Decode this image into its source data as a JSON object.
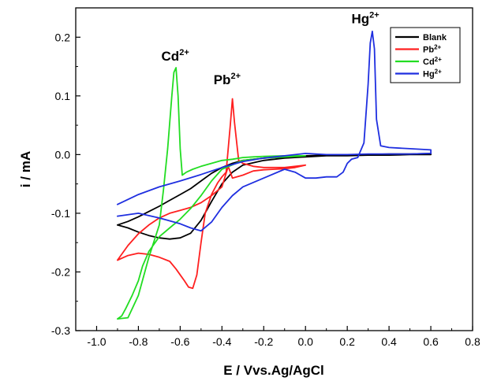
{
  "chart_data": {
    "type": "line",
    "xlabel": "E / Vvs.Ag/AgCl",
    "ylabel": "i / mA",
    "xlim": [
      -1.1,
      0.8
    ],
    "ylim": [
      -0.3,
      0.25
    ],
    "x_ticks": [
      "-1.0",
      "-0.8",
      "-0.6",
      "-0.4",
      "-0.2",
      "0.0",
      "0.2",
      "0.4",
      "0.6",
      "0.8"
    ],
    "x_tick_values": [
      -1.0,
      -0.8,
      -0.6,
      -0.4,
      -0.2,
      0.0,
      0.2,
      0.4,
      0.6,
      0.8
    ],
    "y_ticks": [
      "-0.3",
      "-0.2",
      "-0.1",
      "0.0",
      "0.1",
      "0.2"
    ],
    "y_tick_values": [
      -0.3,
      -0.2,
      -0.1,
      0.0,
      0.1,
      0.2
    ],
    "legend_position": "top-right",
    "grid": false,
    "annotations": [
      {
        "base": "Cd",
        "sup": "2+",
        "x": -0.69,
        "y": 0.16
      },
      {
        "base": "Pb",
        "sup": "2+",
        "x": -0.44,
        "y": 0.12
      },
      {
        "base": "Hg",
        "sup": "2+",
        "x": 0.22,
        "y": 0.224
      }
    ],
    "series": [
      {
        "name": "Blank",
        "label_base": "Blank",
        "label_sup": "",
        "color": "#000000",
        "x": [
          -0.9,
          -0.85,
          -0.8,
          -0.75,
          -0.7,
          -0.65,
          -0.6,
          -0.55,
          -0.5,
          -0.45,
          -0.4,
          -0.35,
          -0.3,
          -0.2,
          -0.1,
          0.0,
          0.1,
          0.2,
          0.3,
          0.4,
          0.5,
          0.6,
          0.6,
          0.5,
          0.4,
          0.3,
          0.2,
          0.1,
          0.0,
          -0.1,
          -0.2,
          -0.3,
          -0.35,
          -0.4,
          -0.45,
          -0.5,
          -0.55,
          -0.6,
          -0.65,
          -0.7,
          -0.75,
          -0.8,
          -0.85,
          -0.9
        ],
        "y": [
          -0.12,
          -0.125,
          -0.132,
          -0.138,
          -0.142,
          -0.144,
          -0.142,
          -0.134,
          -0.112,
          -0.08,
          -0.05,
          -0.03,
          -0.018,
          -0.01,
          -0.006,
          -0.004,
          -0.002,
          -0.002,
          -0.001,
          -0.001,
          0.0,
          0.0,
          0.002,
          0.001,
          0.001,
          0.0,
          0.0,
          -0.001,
          -0.002,
          -0.004,
          -0.006,
          -0.01,
          -0.015,
          -0.022,
          -0.032,
          -0.045,
          -0.058,
          -0.068,
          -0.078,
          -0.088,
          -0.097,
          -0.106,
          -0.114,
          -0.12
        ]
      },
      {
        "name": "Pb2+",
        "label_base": "Pb",
        "label_sup": "2+",
        "color": "#ff2020",
        "x": [
          -0.9,
          -0.85,
          -0.8,
          -0.75,
          -0.7,
          -0.65,
          -0.62,
          -0.6,
          -0.58,
          -0.56,
          -0.54,
          -0.52,
          -0.5,
          -0.48,
          -0.45,
          -0.42,
          -0.4,
          -0.38,
          -0.36,
          -0.35,
          -0.34,
          -0.32,
          -0.3,
          -0.25,
          -0.2,
          -0.1,
          0.0,
          -0.05,
          -0.1,
          -0.15,
          -0.2,
          -0.25,
          -0.3,
          -0.35,
          -0.37,
          -0.4,
          -0.45,
          -0.5,
          -0.55,
          -0.6,
          -0.65,
          -0.7,
          -0.75,
          -0.8,
          -0.85,
          -0.9
        ],
        "y": [
          -0.18,
          -0.172,
          -0.168,
          -0.17,
          -0.175,
          -0.182,
          -0.195,
          -0.205,
          -0.215,
          -0.226,
          -0.228,
          -0.205,
          -0.15,
          -0.1,
          -0.068,
          -0.048,
          -0.038,
          -0.03,
          0.05,
          0.095,
          0.055,
          -0.01,
          -0.015,
          -0.02,
          -0.022,
          -0.022,
          -0.018,
          -0.022,
          -0.024,
          -0.025,
          -0.026,
          -0.028,
          -0.035,
          -0.04,
          -0.02,
          -0.055,
          -0.07,
          -0.082,
          -0.09,
          -0.095,
          -0.1,
          -0.108,
          -0.12,
          -0.135,
          -0.155,
          -0.18
        ]
      },
      {
        "name": "Cd2+",
        "label_base": "Cd",
        "label_sup": "2+",
        "color": "#22dd22",
        "x": [
          -0.9,
          -0.85,
          -0.8,
          -0.75,
          -0.7,
          -0.68,
          -0.66,
          -0.64,
          -0.63,
          -0.62,
          -0.61,
          -0.6,
          -0.59,
          -0.57,
          -0.54,
          -0.5,
          -0.45,
          -0.4,
          -0.35,
          -0.3,
          -0.25,
          -0.2,
          -0.1,
          0.0,
          -0.1,
          -0.2,
          -0.3,
          -0.4,
          -0.45,
          -0.5,
          -0.55,
          -0.6,
          -0.65,
          -0.7,
          -0.75,
          -0.78,
          -0.8,
          -0.83,
          -0.86,
          -0.88,
          -0.9
        ],
        "y": [
          -0.28,
          -0.278,
          -0.24,
          -0.175,
          -0.12,
          -0.06,
          0.01,
          0.1,
          0.14,
          0.148,
          0.1,
          0.01,
          -0.035,
          -0.03,
          -0.025,
          -0.02,
          -0.015,
          -0.01,
          -0.008,
          -0.005,
          -0.004,
          -0.003,
          -0.002,
          -0.002,
          -0.004,
          -0.006,
          -0.01,
          -0.025,
          -0.045,
          -0.07,
          -0.092,
          -0.11,
          -0.125,
          -0.14,
          -0.165,
          -0.19,
          -0.215,
          -0.24,
          -0.262,
          -0.275,
          -0.28
        ]
      },
      {
        "name": "Hg2+",
        "label_base": "Hg",
        "label_sup": "2+",
        "color": "#1f2fe0",
        "x": [
          -0.9,
          -0.8,
          -0.7,
          -0.6,
          -0.55,
          -0.5,
          -0.45,
          -0.4,
          -0.35,
          -0.3,
          -0.2,
          -0.1,
          -0.05,
          0.0,
          0.05,
          0.1,
          0.15,
          0.18,
          0.2,
          0.22,
          0.25,
          0.28,
          0.3,
          0.31,
          0.32,
          0.33,
          0.34,
          0.36,
          0.4,
          0.5,
          0.6,
          0.6,
          0.5,
          0.4,
          0.3,
          0.2,
          0.1,
          0.0,
          -0.1,
          -0.2,
          -0.3,
          -0.4,
          -0.5,
          -0.6,
          -0.7,
          -0.8,
          -0.9
        ],
        "y": [
          -0.105,
          -0.1,
          -0.108,
          -0.118,
          -0.125,
          -0.13,
          -0.115,
          -0.09,
          -0.07,
          -0.055,
          -0.04,
          -0.025,
          -0.03,
          -0.04,
          -0.04,
          -0.038,
          -0.038,
          -0.03,
          -0.015,
          -0.008,
          -0.005,
          0.02,
          0.12,
          0.19,
          0.21,
          0.18,
          0.06,
          0.015,
          0.012,
          0.01,
          0.008,
          0.002,
          0.001,
          0.001,
          0.001,
          0.0,
          0.0,
          0.002,
          -0.002,
          -0.006,
          -0.012,
          -0.022,
          -0.034,
          -0.045,
          -0.055,
          -0.068,
          -0.085
        ]
      }
    ]
  }
}
